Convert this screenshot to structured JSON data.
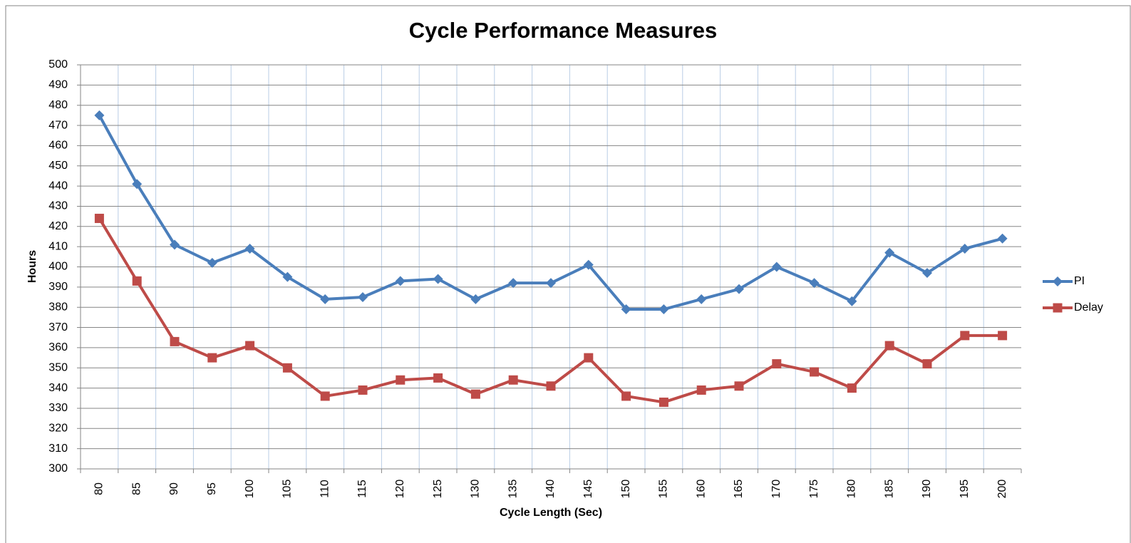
{
  "chart_data": {
    "type": "line",
    "title": "Cycle Performance Measures",
    "xlabel": "Cycle Length (Sec)",
    "ylabel": "Hours",
    "categories": [
      "80",
      "85",
      "90",
      "95",
      "100",
      "105",
      "110",
      "115",
      "120",
      "125",
      "130",
      "135",
      "140",
      "145",
      "150",
      "155",
      "160",
      "165",
      "170",
      "175",
      "180",
      "185",
      "190",
      "195",
      "200"
    ],
    "series": [
      {
        "name": "PI",
        "color": "#4a7ebb",
        "marker": "diamond",
        "values": [
          475,
          441,
          411,
          402,
          409,
          395,
          384,
          385,
          393,
          394,
          384,
          392,
          392,
          401,
          379,
          379,
          384,
          389,
          400,
          392,
          383,
          407,
          397,
          409,
          414
        ]
      },
      {
        "name": "Delay",
        "color": "#be4b48",
        "marker": "square",
        "values": [
          424,
          393,
          363,
          355,
          361,
          350,
          336,
          339,
          344,
          345,
          337,
          344,
          341,
          355,
          336,
          333,
          339,
          341,
          352,
          348,
          340,
          361,
          352,
          366,
          366
        ]
      }
    ],
    "ylim": [
      300,
      500
    ],
    "yticks": [
      300,
      310,
      320,
      330,
      340,
      350,
      360,
      370,
      380,
      390,
      400,
      410,
      420,
      430,
      440,
      450,
      460,
      470,
      480,
      490,
      500
    ],
    "grid": true,
    "legend": "right"
  }
}
